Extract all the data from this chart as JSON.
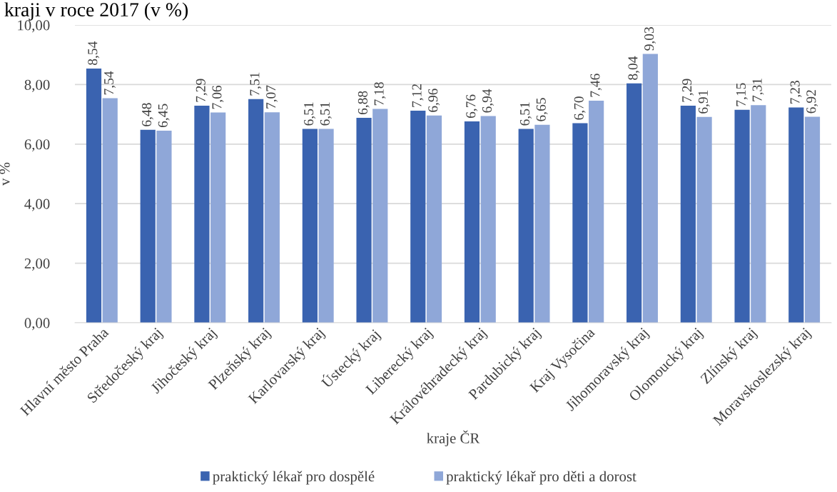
{
  "chart_data": {
    "type": "bar",
    "title": "kraji v roce 2017 (v %)",
    "xlabel": "kraje ČR",
    "ylabel": "v %",
    "categories": [
      "Hlavní město Praha",
      "Středočeský kraj",
      "Jihočeský kraj",
      "Plzeňský kraj",
      "Karlovarský kraj",
      "Ústecký kraj",
      "Liberecký kraj",
      "Královéhradecký kraj",
      "Pardubický kraj",
      "Kraj Vysočina",
      "Jihomoravský kraj",
      "Olomoucký kraj",
      "Zlínský kraj",
      "Moravskoslezský kraj"
    ],
    "series": [
      {
        "name": "praktický lékař pro dospělé",
        "color": "#3a63b0",
        "values": [
          8.54,
          6.48,
          7.29,
          7.51,
          6.51,
          6.88,
          7.12,
          6.76,
          6.51,
          6.7,
          8.04,
          7.29,
          7.15,
          7.23
        ],
        "value_labels": [
          "8,54",
          "6,48",
          "7,29",
          "7,51",
          "6,51",
          "6,88",
          "7,12",
          "6,76",
          "6,51",
          "6,70",
          "8,04",
          "7,29",
          "7,15",
          "7,23"
        ]
      },
      {
        "name": "praktický lékař pro děti a dorost",
        "color": "#8fa7d8",
        "values": [
          7.54,
          6.45,
          7.06,
          7.07,
          6.51,
          7.18,
          6.96,
          6.94,
          6.65,
          7.46,
          9.03,
          6.91,
          7.31,
          6.92
        ],
        "value_labels": [
          "7,54",
          "6,45",
          "7,06",
          "7,07",
          "6,51",
          "7,18",
          "6,96",
          "6,94",
          "6,65",
          "7,46",
          "9,03",
          "6,91",
          "7,31",
          "6,92"
        ]
      }
    ],
    "ylim": [
      0,
      10
    ],
    "yticks": [
      {
        "value": 0,
        "label": "0,00"
      },
      {
        "value": 2,
        "label": "2,00"
      },
      {
        "value": 4,
        "label": "4,00"
      },
      {
        "value": 6,
        "label": "6,00"
      },
      {
        "value": 8,
        "label": "8,00"
      },
      {
        "value": 10,
        "label": "10,00"
      }
    ],
    "grid": "y",
    "legend": "bottom"
  }
}
